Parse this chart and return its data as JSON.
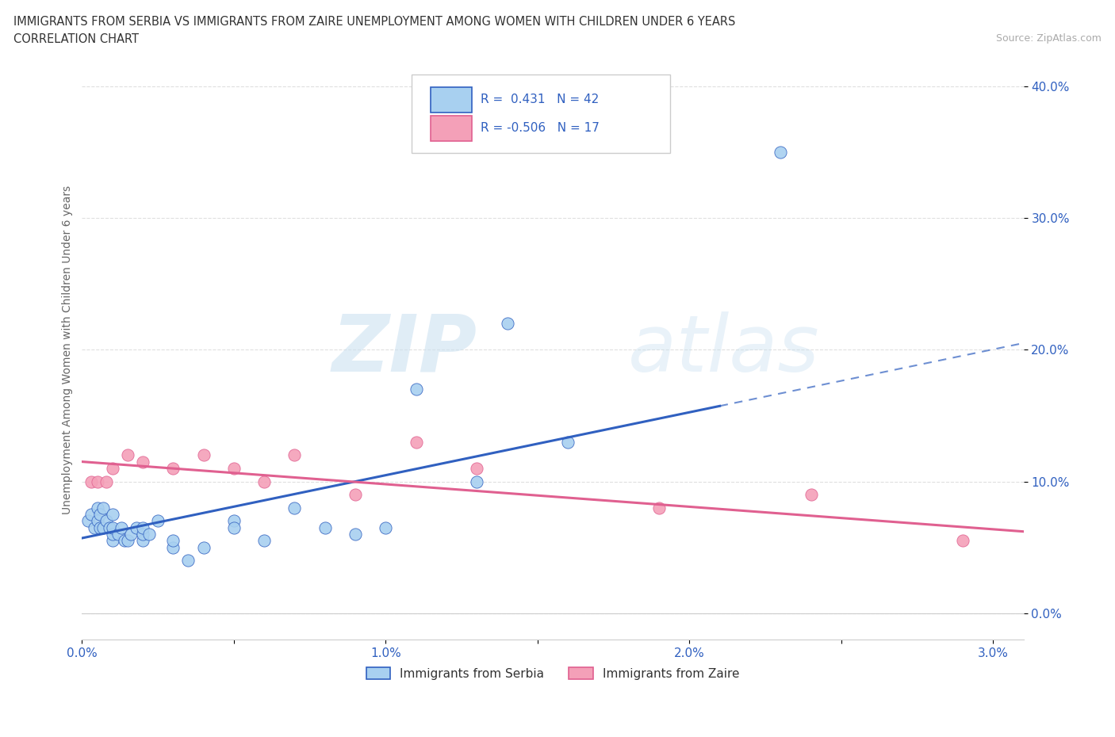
{
  "title_line1": "IMMIGRANTS FROM SERBIA VS IMMIGRANTS FROM ZAIRE UNEMPLOYMENT AMONG WOMEN WITH CHILDREN UNDER 6 YEARS",
  "title_line2": "CORRELATION CHART",
  "source_text": "Source: ZipAtlas.com",
  "xlim": [
    0.0,
    0.031
  ],
  "ylim": [
    -0.02,
    0.42
  ],
  "serbia_color": "#a8d0f0",
  "zaire_color": "#f4a0b8",
  "serbia_line_color": "#3060c0",
  "zaire_line_color": "#e06090",
  "serbia_scatter_x": [
    0.0002,
    0.0003,
    0.0004,
    0.0005,
    0.0005,
    0.0006,
    0.0006,
    0.0007,
    0.0007,
    0.0008,
    0.0009,
    0.001,
    0.001,
    0.001,
    0.001,
    0.0012,
    0.0013,
    0.0014,
    0.0015,
    0.0016,
    0.0018,
    0.002,
    0.002,
    0.002,
    0.0022,
    0.0025,
    0.003,
    0.003,
    0.0035,
    0.004,
    0.005,
    0.005,
    0.006,
    0.007,
    0.008,
    0.009,
    0.01,
    0.011,
    0.013,
    0.014,
    0.016,
    0.023
  ],
  "serbia_scatter_y": [
    0.07,
    0.075,
    0.065,
    0.07,
    0.08,
    0.065,
    0.075,
    0.065,
    0.08,
    0.07,
    0.065,
    0.055,
    0.06,
    0.065,
    0.075,
    0.06,
    0.065,
    0.055,
    0.055,
    0.06,
    0.065,
    0.055,
    0.06,
    0.065,
    0.06,
    0.07,
    0.05,
    0.055,
    0.04,
    0.05,
    0.07,
    0.065,
    0.055,
    0.08,
    0.065,
    0.06,
    0.065,
    0.17,
    0.1,
    0.22,
    0.13,
    0.35
  ],
  "zaire_scatter_x": [
    0.0003,
    0.0005,
    0.0008,
    0.001,
    0.0015,
    0.002,
    0.003,
    0.004,
    0.005,
    0.006,
    0.007,
    0.009,
    0.011,
    0.013,
    0.019,
    0.024,
    0.029
  ],
  "zaire_scatter_y": [
    0.1,
    0.1,
    0.1,
    0.11,
    0.12,
    0.115,
    0.11,
    0.12,
    0.11,
    0.1,
    0.12,
    0.09,
    0.13,
    0.11,
    0.08,
    0.09,
    0.055
  ],
  "serbia_line_x": [
    0.0,
    0.031
  ],
  "serbia_line_y": [
    0.057,
    0.205
  ],
  "zaire_line_x": [
    0.0,
    0.031
  ],
  "zaire_line_y": [
    0.115,
    0.062
  ],
  "serbia_R": "0.431",
  "serbia_N": "42",
  "zaire_R": "-0.506",
  "zaire_N": "17",
  "legend_serbia_label": "Immigrants from Serbia",
  "legend_zaire_label": "Immigrants from Zaire",
  "ylabel": "Unemployment Among Women with Children Under 6 years",
  "watermark_zip": "ZIP",
  "watermark_atlas": "atlas",
  "background_color": "#FFFFFF",
  "grid_color": "#d8d8d8",
  "ytick_labels": [
    "0.0%",
    "10.0%",
    "20.0%",
    "30.0%",
    "40.0%"
  ],
  "ytick_vals": [
    0.0,
    0.1,
    0.2,
    0.3,
    0.4
  ],
  "xtick_vals": [
    0.0,
    0.005,
    0.01,
    0.015,
    0.02,
    0.025,
    0.03
  ],
  "xtick_labels": [
    "0.0%",
    "",
    "1.0%",
    "",
    "2.0%",
    "",
    "3.0%"
  ]
}
